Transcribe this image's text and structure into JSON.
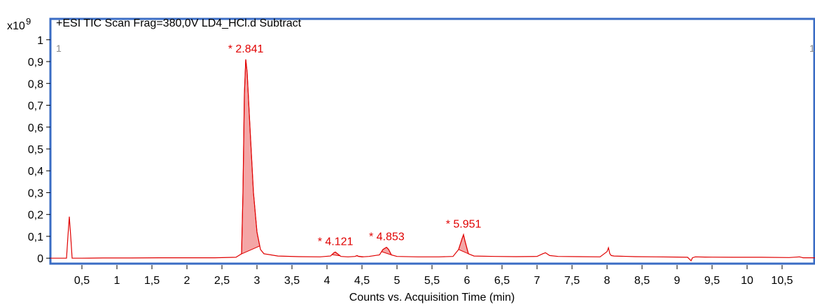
{
  "chart_data": {
    "type": "line",
    "title": "+ESI TIC Scan Frag=380,0V LD4_HCl.d  Subtract",
    "y_multiplier_label": "x10",
    "y_exponent": "9",
    "xlabel": "Counts vs. Acquisition Time (min)",
    "ylabel": "",
    "panel_index": "1",
    "panel_index_right": "1",
    "xlim": [
      0.05,
      10.97
    ],
    "ylim": [
      -0.025,
      1.025
    ],
    "x_ticks": [
      0.5,
      1,
      1.5,
      2,
      2.5,
      3,
      3.5,
      4,
      4.5,
      5,
      5.5,
      6,
      6.5,
      7,
      7.5,
      8,
      8.5,
      9,
      9.5,
      10,
      10.5
    ],
    "x_tick_labels": [
      "0,5",
      "1",
      "1,5",
      "2",
      "2,5",
      "3",
      "3,5",
      "4",
      "4,5",
      "5",
      "5,5",
      "6",
      "6,5",
      "7",
      "7,5",
      "8",
      "8,5",
      "9",
      "9,5",
      "10",
      "10,5"
    ],
    "y_ticks": [
      0,
      0.1,
      0.2,
      0.3,
      0.4,
      0.5,
      0.6,
      0.7,
      0.8,
      0.9,
      1
    ],
    "y_tick_labels": [
      "0",
      "0,1",
      "0,2",
      "0,3",
      "0,4",
      "0,5",
      "0,6",
      "0,7",
      "0,8",
      "0,9",
      "1"
    ],
    "grid": false,
    "line_color": "#e00000",
    "fill_color": "#f4a6a6",
    "frame_color": "#3a6cc4",
    "series": [
      {
        "values_x": [
          0.05,
          0.2,
          0.28,
          0.3,
          0.32,
          0.34,
          0.36,
          0.4,
          0.5,
          0.8,
          1.2,
          1.6,
          2.0,
          2.4,
          2.7,
          2.78,
          2.8,
          2.82,
          2.84,
          2.86,
          2.9,
          2.95,
          3.0,
          3.05,
          3.1,
          3.3,
          3.6,
          3.9,
          4.05,
          4.1,
          4.12,
          4.15,
          4.2,
          4.3,
          4.4,
          4.43,
          4.45,
          4.5,
          4.6,
          4.75,
          4.8,
          4.85,
          4.88,
          4.92,
          5.0,
          5.3,
          5.6,
          5.8,
          5.88,
          5.93,
          5.95,
          5.97,
          6.02,
          6.1,
          6.4,
          6.7,
          7.0,
          7.08,
          7.12,
          7.18,
          7.3,
          7.6,
          7.9,
          8.0,
          8.02,
          8.04,
          8.06,
          8.1,
          8.4,
          8.7,
          9.0,
          9.15,
          9.2,
          9.22,
          9.26,
          9.4,
          9.8,
          10.2,
          10.6,
          10.75,
          10.8,
          10.97
        ],
        "values_y": [
          0.0,
          0.0,
          0.0,
          0.1,
          0.19,
          0.1,
          0.0,
          0.0,
          0.0,
          0.001,
          0.001,
          0.002,
          0.002,
          0.002,
          0.004,
          0.02,
          0.3,
          0.75,
          0.91,
          0.85,
          0.6,
          0.3,
          0.12,
          0.04,
          0.02,
          0.01,
          0.007,
          0.006,
          0.01,
          0.025,
          0.028,
          0.02,
          0.008,
          0.006,
          0.008,
          0.012,
          0.008,
          0.006,
          0.008,
          0.015,
          0.04,
          0.05,
          0.04,
          0.015,
          0.008,
          0.006,
          0.006,
          0.008,
          0.04,
          0.09,
          0.108,
          0.08,
          0.02,
          0.01,
          0.008,
          0.007,
          0.008,
          0.02,
          0.025,
          0.012,
          0.008,
          0.007,
          0.006,
          0.03,
          0.048,
          0.02,
          0.012,
          0.01,
          0.007,
          0.006,
          0.005,
          0.004,
          -0.012,
          0.002,
          0.006,
          0.005,
          0.004,
          0.004,
          0.003,
          0.006,
          0.002,
          0.002
        ]
      }
    ],
    "peaks": [
      {
        "label": "* 2.841",
        "x": 2.841,
        "start": 2.77,
        "end": 3.04
      },
      {
        "label": "* 4.121",
        "x": 4.121,
        "start": 4.07,
        "end": 4.19
      },
      {
        "label": "* 4.853",
        "x": 4.853,
        "start": 4.78,
        "end": 4.92
      },
      {
        "label": "* 5.951",
        "x": 5.951,
        "start": 5.88,
        "end": 6.02
      }
    ],
    "extra_filled_segments": [
      {
        "start": 4.42,
        "end": 4.52
      }
    ]
  }
}
